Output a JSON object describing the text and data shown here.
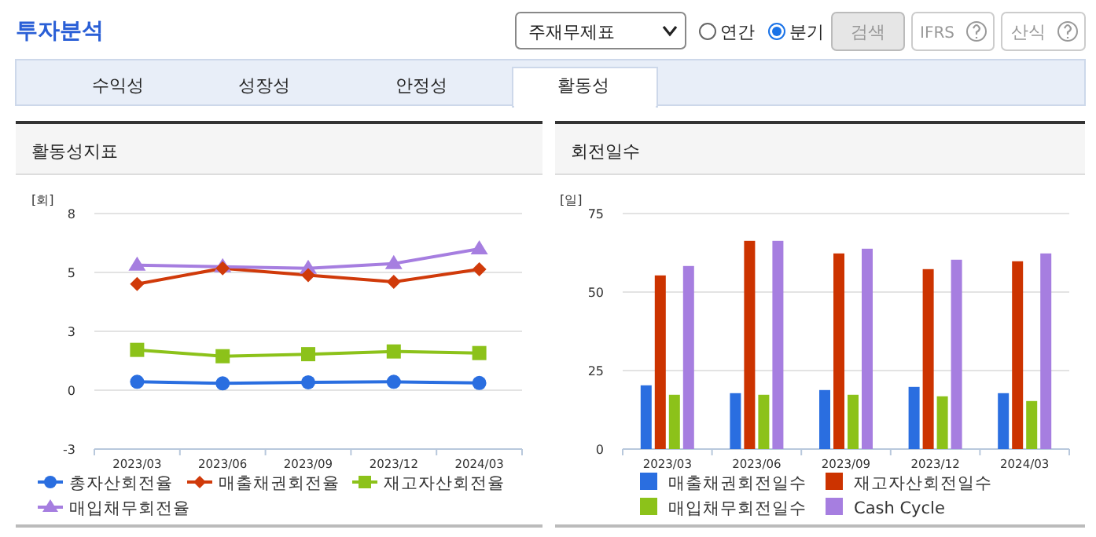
{
  "chart_data": [
    {
      "type": "other",
      "title": "투자분석",
      "annotations": [
        "주재무제표",
        "연간",
        "분기",
        "검색",
        "IFRS",
        "산식",
        "수익성",
        "성장성",
        "안정성",
        "활동성"
      ]
    },
    {
      "type": "line",
      "title": "활동성지표",
      "ylabel": "[회]",
      "categories": [
        "2023/03",
        "2023/06",
        "2023/09",
        "2023/12",
        "2024/03"
      ],
      "ylim": [
        -2.6,
        7.8
      ],
      "yticks": [
        {
          "value": -2.6,
          "label": "-3"
        },
        {
          "value": 0,
          "label": "0"
        },
        {
          "value": 2.6,
          "label": "3"
        },
        {
          "value": 5.2,
          "label": "5"
        },
        {
          "value": 7.8,
          "label": "8"
        }
      ],
      "grid": "y",
      "legend": "bottom",
      "series": [
        {
          "name": "총자산회전율",
          "color": "#2a6ee0",
          "marker": "circle",
          "values": [
            0.37,
            0.3,
            0.35,
            0.37,
            0.32
          ]
        },
        {
          "name": "매출채권회전율",
          "color": "#d03a0a",
          "marker": "diamond",
          "values": [
            4.69,
            5.38,
            5.08,
            4.78,
            5.34
          ]
        },
        {
          "name": "재고자산회전율",
          "color": "#8cc21a",
          "marker": "square",
          "values": [
            1.78,
            1.5,
            1.59,
            1.71,
            1.64
          ]
        },
        {
          "name": "매입채무회전율",
          "color": "#a67ee0",
          "marker": "triangle",
          "values": [
            5.52,
            5.45,
            5.38,
            5.59,
            6.24
          ]
        }
      ]
    },
    {
      "type": "bar",
      "title": "회전일수",
      "ylabel": "[일]",
      "categories": [
        "2023/03",
        "2023/06",
        "2023/09",
        "2023/12",
        "2024/03"
      ],
      "ylim": [
        0,
        75
      ],
      "yticks": [
        0,
        25,
        50,
        75
      ],
      "grid": "y",
      "legend": "bottom",
      "series": [
        {
          "name": "매출채권회전일수",
          "color": "#2a6ee0",
          "values": [
            20.3,
            17.8,
            18.8,
            19.8,
            17.8
          ]
        },
        {
          "name": "재고자산회전일수",
          "color": "#cc3300",
          "values": [
            55.3,
            66.3,
            62.3,
            57.3,
            59.8
          ]
        },
        {
          "name": "매입채무회전일수",
          "color": "#8cc21a",
          "values": [
            17.3,
            17.3,
            17.3,
            16.8,
            15.3
          ]
        },
        {
          "name": "Cash Cycle",
          "color": "#a67ee0",
          "values": [
            58.3,
            66.3,
            63.8,
            60.3,
            62.3
          ]
        }
      ]
    }
  ]
}
